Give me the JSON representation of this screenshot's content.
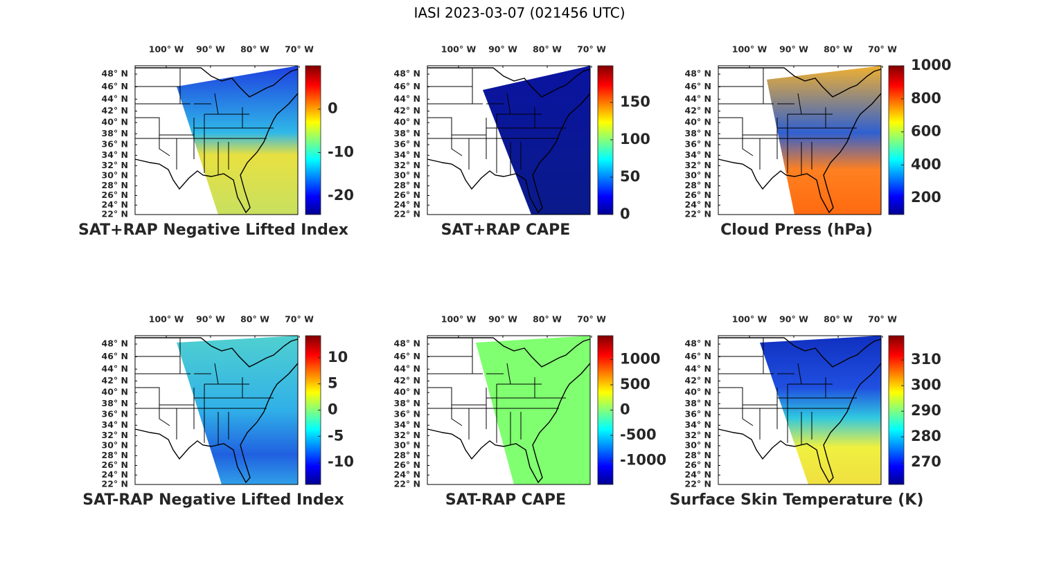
{
  "title": "IASI 2023-03-07 (021456 UTC)",
  "lon_ticks": [
    {
      "value": 100,
      "label": "100° W"
    },
    {
      "value": 90,
      "label": "90° W"
    },
    {
      "value": 80,
      "label": "80° W"
    },
    {
      "value": 70,
      "label": "70° W"
    }
  ],
  "lat_ticks": [
    {
      "value": 48,
      "label": "48° N"
    },
    {
      "value": 46,
      "label": "46° N"
    },
    {
      "value": 44,
      "label": "44° N"
    },
    {
      "value": 42,
      "label": "42° N"
    },
    {
      "value": 40,
      "label": "40° N"
    },
    {
      "value": 38,
      "label": "38° N"
    },
    {
      "value": 36,
      "label": "36° N"
    },
    {
      "value": 34,
      "label": "34° N"
    },
    {
      "value": 32,
      "label": "32° N"
    },
    {
      "value": 30,
      "label": "30° N"
    },
    {
      "value": 28,
      "label": "28° N"
    },
    {
      "value": 26,
      "label": "26° N"
    },
    {
      "value": 24,
      "label": "24° N"
    },
    {
      "value": 22,
      "label": "22° N"
    }
  ],
  "panels": [
    {
      "title": "SAT+RAP Negative Lifted Index",
      "colorbar": {
        "lim": [
          -24.3,
          10
        ],
        "ticks": [
          0,
          -10,
          -20
        ]
      }
    },
    {
      "title": "SAT+RAP CAPE",
      "colorbar": {
        "lim": [
          0,
          199
        ],
        "ticks": [
          150,
          100,
          50,
          0
        ]
      }
    },
    {
      "title": "Cloud Press (hPa)",
      "colorbar": {
        "lim": [
          100,
          1000
        ],
        "ticks": [
          1000,
          800,
          600,
          400,
          200
        ]
      }
    },
    {
      "title": "SAT-RAP Negative Lifted Index",
      "colorbar": {
        "lim": [
          -14.2,
          14.2
        ],
        "ticks": [
          10,
          5,
          0,
          -5,
          -10
        ]
      }
    },
    {
      "title": "SAT-RAP CAPE",
      "colorbar": {
        "lim": [
          -1470,
          1470
        ],
        "ticks": [
          1000,
          500,
          0,
          -500,
          -1000
        ]
      }
    },
    {
      "title": "Surface Skin Temperature (K)",
      "colorbar": {
        "lim": [
          261.4,
          319.5
        ],
        "ticks": [
          310,
          300,
          290,
          280,
          270
        ]
      }
    }
  ]
}
